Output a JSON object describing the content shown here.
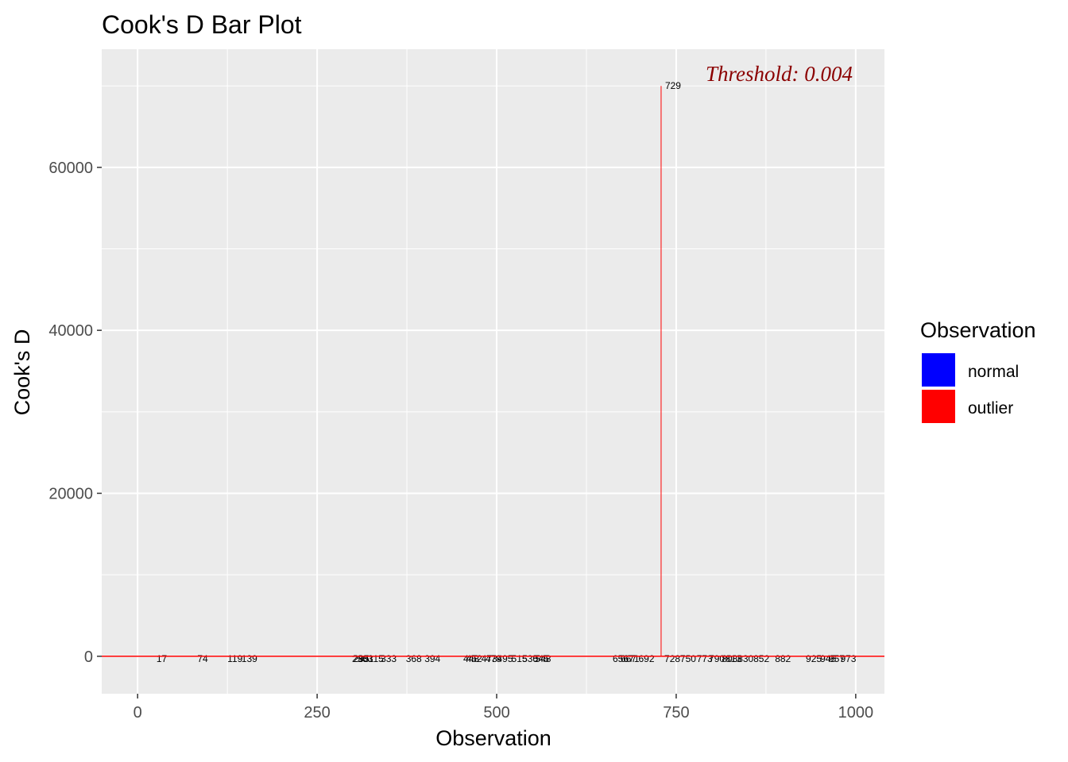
{
  "chart_data": {
    "type": "bar",
    "title": "Cook's D Bar Plot",
    "xlabel": "Observation",
    "ylabel": "Cook's D",
    "xlim": [
      -50,
      1040
    ],
    "ylim": [
      -4600,
      74500
    ],
    "xticks": [
      0,
      250,
      500,
      750,
      1000
    ],
    "xtick_labels": [
      "0",
      "250",
      "500",
      "750",
      "1000"
    ],
    "yticks": [
      0,
      20000,
      40000,
      60000
    ],
    "ytick_labels": [
      "0",
      "20000",
      "40000",
      "60000"
    ],
    "grid": true,
    "legend": {
      "title": "Observation",
      "placement": "right",
      "entries": [
        {
          "label": "normal",
          "color": "#0000ff"
        },
        {
          "label": "outlier",
          "color": "#ff0000"
        }
      ]
    },
    "threshold": {
      "value": 0.004,
      "label": "Threshold: 0.004",
      "color": "#ff0000",
      "label_color": "#8b0000"
    },
    "colors": {
      "panel": "#ebebeb",
      "grid": "#ffffff",
      "normal": "#0000ff",
      "outlier": "#ff0000"
    },
    "series": [
      {
        "name": "outlier",
        "color": "#ff0000",
        "points": [
          {
            "label": "17",
            "x": 17,
            "y": 0
          },
          {
            "label": "74",
            "x": 74,
            "y": 0
          },
          {
            "label": "119",
            "x": 119,
            "y": 0
          },
          {
            "label": "139",
            "x": 139,
            "y": 0
          },
          {
            "label": "293",
            "x": 293,
            "y": 0
          },
          {
            "label": "295",
            "x": 295,
            "y": 0
          },
          {
            "label": "301",
            "x": 301,
            "y": 0
          },
          {
            "label": "315",
            "x": 315,
            "y": 0
          },
          {
            "label": "333",
            "x": 333,
            "y": 0
          },
          {
            "label": "368",
            "x": 368,
            "y": 0
          },
          {
            "label": "394",
            "x": 394,
            "y": 0
          },
          {
            "label": "448",
            "x": 448,
            "y": 0
          },
          {
            "label": "452",
            "x": 452,
            "y": 0
          },
          {
            "label": "473",
            "x": 473,
            "y": 0
          },
          {
            "label": "479",
            "x": 479,
            "y": 0
          },
          {
            "label": "495",
            "x": 495,
            "y": 0
          },
          {
            "label": "515",
            "x": 515,
            "y": 0
          },
          {
            "label": "530",
            "x": 530,
            "y": 0
          },
          {
            "label": "545",
            "x": 545,
            "y": 0
          },
          {
            "label": "548",
            "x": 548,
            "y": 0
          },
          {
            "label": "656",
            "x": 656,
            "y": 0
          },
          {
            "label": "667",
            "x": 667,
            "y": 0
          },
          {
            "label": "671",
            "x": 671,
            "y": 0
          },
          {
            "label": "692",
            "x": 692,
            "y": 0
          },
          {
            "label": "728",
            "x": 728,
            "y": 0
          },
          {
            "label": "729",
            "x": 729,
            "y": 70000
          },
          {
            "label": "750",
            "x": 750,
            "y": 0
          },
          {
            "label": "773",
            "x": 773,
            "y": 0
          },
          {
            "label": "790",
            "x": 790,
            "y": 0
          },
          {
            "label": "808",
            "x": 808,
            "y": 0
          },
          {
            "label": "813",
            "x": 813,
            "y": 0
          },
          {
            "label": "830",
            "x": 830,
            "y": 0
          },
          {
            "label": "852",
            "x": 852,
            "y": 0
          },
          {
            "label": "882",
            "x": 882,
            "y": 0
          },
          {
            "label": "925",
            "x": 925,
            "y": 0
          },
          {
            "label": "945",
            "x": 945,
            "y": 0
          },
          {
            "label": "957",
            "x": 957,
            "y": 0
          },
          {
            "label": "973",
            "x": 973,
            "y": 0
          }
        ]
      }
    ]
  }
}
